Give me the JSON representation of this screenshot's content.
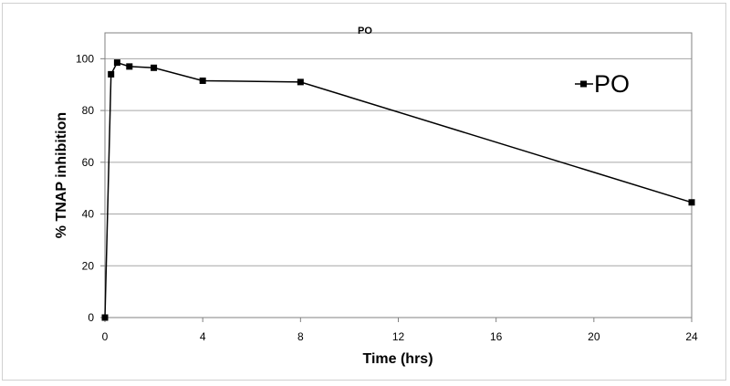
{
  "chart_data": {
    "type": "line",
    "title": "PO",
    "xlabel": "Time (hrs)",
    "ylabel": "% TNAP inhibition",
    "xlim": [
      0,
      24
    ],
    "ylim": [
      0,
      110
    ],
    "x_ticks": [
      0,
      4,
      8,
      12,
      16,
      20,
      24
    ],
    "y_ticks": [
      0,
      20,
      40,
      60,
      80,
      100
    ],
    "grid": "horizontal",
    "legend": "top-right",
    "series": [
      {
        "name": "PO",
        "color": "#000000",
        "marker": "square",
        "x": [
          0,
          0.25,
          0.5,
          1,
          2,
          4,
          8,
          24
        ],
        "y": [
          0,
          94,
          98.5,
          97,
          96.5,
          91.5,
          91,
          44.5
        ]
      }
    ]
  }
}
